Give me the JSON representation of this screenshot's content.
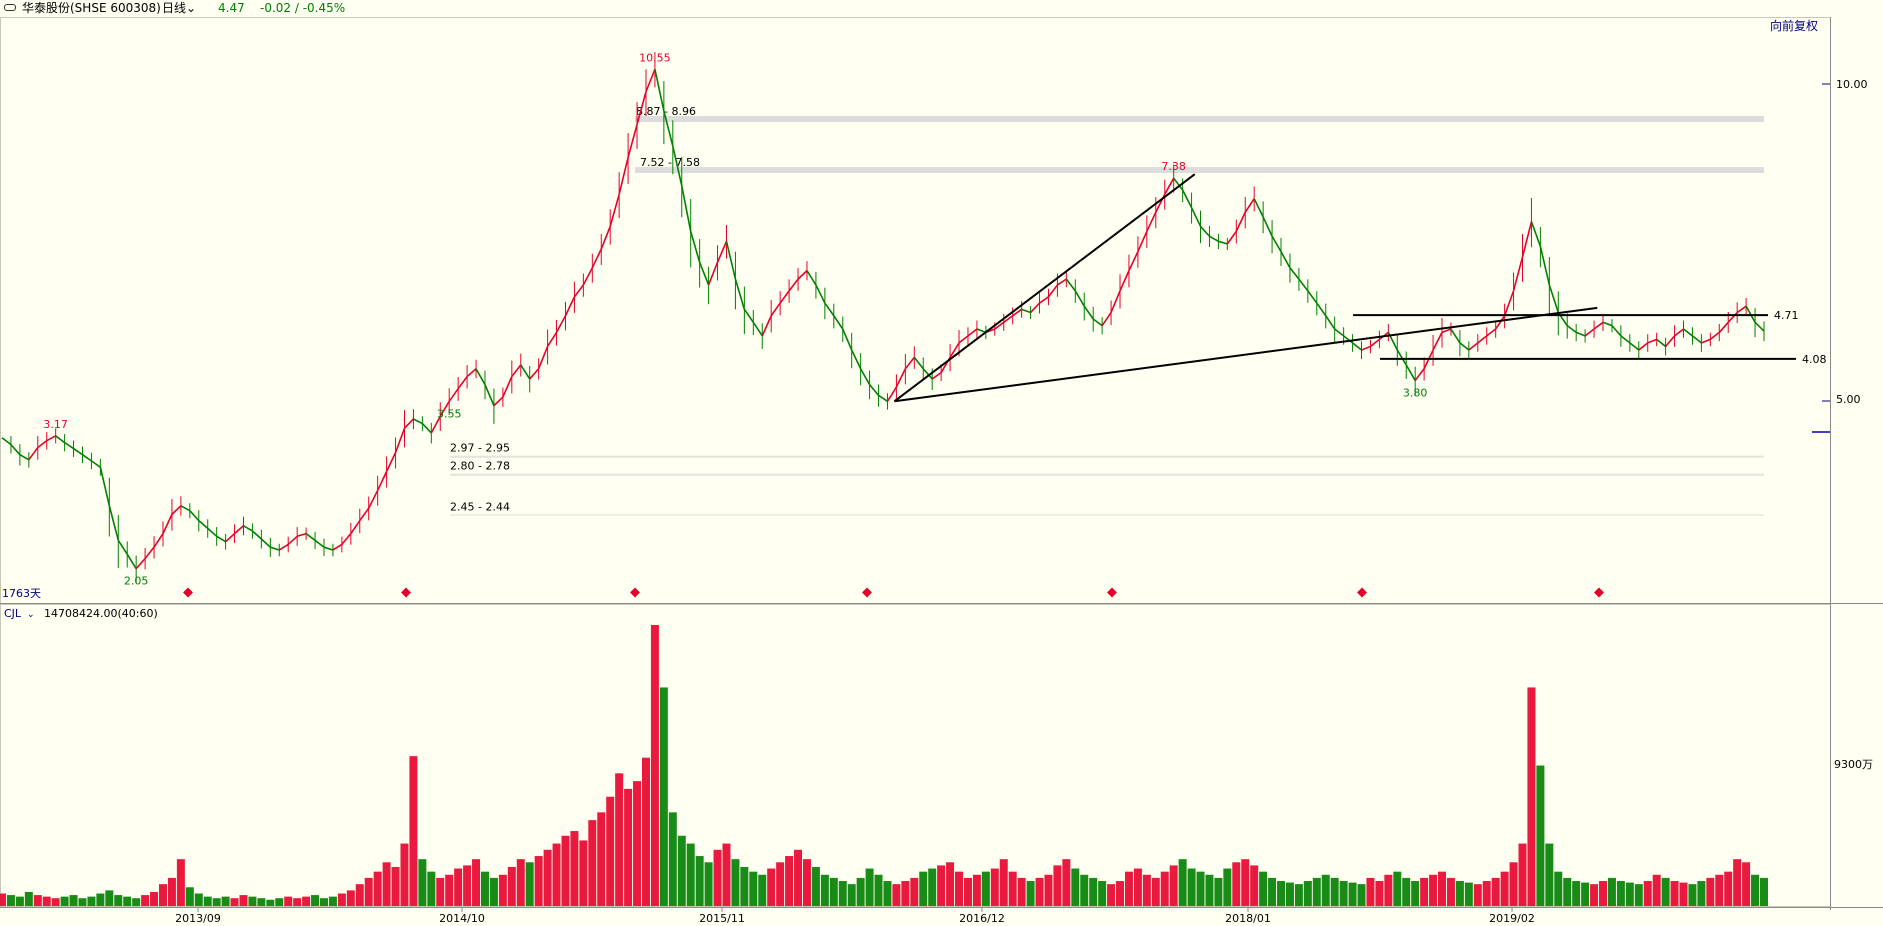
{
  "header": {
    "toggle_icon": "window-toggle-icon",
    "stock_name": "华泰股份(SHSE 600308)",
    "period": "日线",
    "last_price": "4.47",
    "change": "-0.02 / -0.45%",
    "adjust_label": "向前复权"
  },
  "price_panel": {
    "days_label": "1763天",
    "ytick_labels": [
      "10.00",
      "5.00"
    ],
    "current_marker": "4.47"
  },
  "volume_panel": {
    "indicator": "CJL",
    "indicator_value": "14708424.00(40:60)",
    "ytick_label": "9300万"
  },
  "colors": {
    "background": "#fffff2",
    "up": "#e8002a",
    "down": "#008000",
    "annotation_line": "#000000",
    "zone_band": "#dcdcdc",
    "axis_label": "#000080"
  },
  "chart_data": [
    {
      "type": "line",
      "title": "",
      "scale": "log",
      "ylim": [
        1.85,
        12.4
      ],
      "x_ticks": [
        "2013/09",
        "2014/10",
        "2015/11",
        "2016/12",
        "2018/01",
        "2019/02"
      ],
      "y_ticks": [
        10.0,
        5.0
      ],
      "series": [
        {
          "values": [
            3.15,
            3.08,
            2.98,
            2.93,
            3.05,
            3.12,
            3.17,
            3.1,
            3.04,
            2.98,
            2.92,
            2.86,
            2.52,
            2.25,
            2.15,
            2.05,
            2.12,
            2.2,
            2.3,
            2.45,
            2.52,
            2.48,
            2.4,
            2.34,
            2.28,
            2.24,
            2.3,
            2.36,
            2.32,
            2.26,
            2.2,
            2.18,
            2.22,
            2.28,
            2.3,
            2.25,
            2.2,
            2.18,
            2.22,
            2.3,
            2.4,
            2.5,
            2.65,
            2.82,
            3.0,
            3.25,
            3.35,
            3.3,
            3.2,
            3.38,
            3.55,
            3.7,
            3.85,
            3.95,
            3.75,
            3.5,
            3.6,
            3.85,
            4.0,
            3.82,
            3.95,
            4.25,
            4.45,
            4.7,
            5.0,
            5.2,
            5.5,
            5.85,
            6.3,
            7.0,
            7.9,
            8.8,
            9.8,
            10.55,
            9.2,
            8.2,
            7.2,
            6.2,
            5.6,
            5.2,
            5.6,
            6.0,
            5.3,
            4.8,
            4.6,
            4.4,
            4.7,
            4.9,
            5.1,
            5.3,
            5.45,
            5.2,
            4.9,
            4.7,
            4.5,
            4.2,
            3.95,
            3.75,
            3.62,
            3.55,
            3.72,
            3.95,
            4.1,
            3.95,
            3.82,
            3.9,
            4.1,
            4.3,
            4.4,
            4.5,
            4.45,
            4.5,
            4.6,
            4.7,
            4.8,
            4.75,
            4.9,
            5.0,
            5.2,
            5.3,
            5.1,
            4.85,
            4.65,
            4.55,
            4.75,
            5.1,
            5.45,
            5.8,
            6.2,
            6.6,
            7.0,
            7.38,
            7.1,
            6.7,
            6.3,
            6.1,
            6.0,
            5.95,
            6.2,
            6.6,
            6.9,
            6.5,
            6.1,
            5.8,
            5.5,
            5.3,
            5.1,
            4.9,
            4.7,
            4.5,
            4.4,
            4.3,
            4.2,
            4.25,
            4.35,
            4.45,
            4.2,
            4.0,
            3.8,
            3.95,
            4.2,
            4.45,
            4.5,
            4.3,
            4.2,
            4.3,
            4.4,
            4.5,
            4.7,
            5.1,
            5.7,
            6.4,
            5.9,
            5.2,
            4.75,
            4.55,
            4.45,
            4.4,
            4.5,
            4.6,
            4.55,
            4.4,
            4.3,
            4.2,
            4.3,
            4.35,
            4.25,
            4.4,
            4.5,
            4.4,
            4.3,
            4.35,
            4.45,
            4.6,
            4.75,
            4.85,
            4.6,
            4.47
          ]
        }
      ],
      "high_label": "10.55",
      "high_labels": [
        "3.17",
        "10.55",
        "7.38"
      ],
      "low_labels": [
        "2.05",
        "3.55",
        "3.80"
      ],
      "zones": [
        {
          "label": "8.87 - 8.96",
          "low": 8.87,
          "high": 8.96
        },
        {
          "label": "7.52 - 7.58",
          "low": 7.52,
          "high": 7.58
        },
        {
          "label": "2.97 - 2.95",
          "low": 2.95,
          "high": 2.97
        },
        {
          "label": "2.80 - 2.78",
          "low": 2.78,
          "high": 2.8
        },
        {
          "label": "2.45 - 2.44",
          "low": 2.44,
          "high": 2.45
        }
      ],
      "horizontal_levels": [
        {
          "label": "4.71",
          "value": 4.71
        },
        {
          "label": "4.08",
          "value": 4.08
        }
      ],
      "trendlines": [
        {
          "from": [
            3.55,
            100
          ],
          "to": [
            7.38,
            130
          ]
        },
        {
          "from": [
            3.55,
            100
          ],
          "to": [
            4.76,
            175
          ]
        }
      ]
    },
    {
      "type": "bar",
      "title": "",
      "series": [
        {
          "values": [
            8,
            7,
            6,
            9,
            7,
            6,
            5,
            6,
            7,
            5,
            6,
            8,
            10,
            7,
            6,
            5,
            7,
            9,
            14,
            18,
            30,
            12,
            8,
            6,
            5,
            6,
            5,
            7,
            6,
            5,
            4,
            5,
            6,
            5,
            6,
            7,
            5,
            6,
            8,
            10,
            14,
            18,
            22,
            28,
            25,
            40,
            96,
            30,
            22,
            18,
            20,
            24,
            26,
            30,
            22,
            18,
            20,
            25,
            30,
            28,
            32,
            36,
            40,
            45,
            48,
            42,
            55,
            60,
            70,
            85,
            75,
            80,
            95,
            180,
            140,
            60,
            45,
            40,
            32,
            28,
            36,
            40,
            30,
            25,
            22,
            20,
            24,
            28,
            32,
            36,
            30,
            25,
            20,
            18,
            16,
            14,
            18,
            24,
            20,
            16,
            14,
            16,
            18,
            22,
            24,
            26,
            28,
            22,
            18,
            20,
            22,
            24,
            30,
            22,
            18,
            16,
            18,
            20,
            26,
            30,
            24,
            20,
            18,
            16,
            14,
            16,
            22,
            24,
            20,
            18,
            22,
            26,
            30,
            24,
            22,
            20,
            18,
            24,
            28,
            30,
            26,
            22,
            18,
            16,
            15,
            14,
            16,
            18,
            20,
            18,
            16,
            15,
            14,
            18,
            16,
            20,
            22,
            18,
            16,
            18,
            20,
            22,
            18,
            16,
            15,
            14,
            16,
            18,
            22,
            28,
            40,
            140,
            90,
            40,
            22,
            18,
            16,
            15,
            14,
            16,
            18,
            16,
            15,
            14,
            16,
            20,
            18,
            16,
            15,
            14,
            16,
            18,
            20,
            22,
            30,
            28,
            20,
            18
          ]
        }
      ]
    }
  ]
}
